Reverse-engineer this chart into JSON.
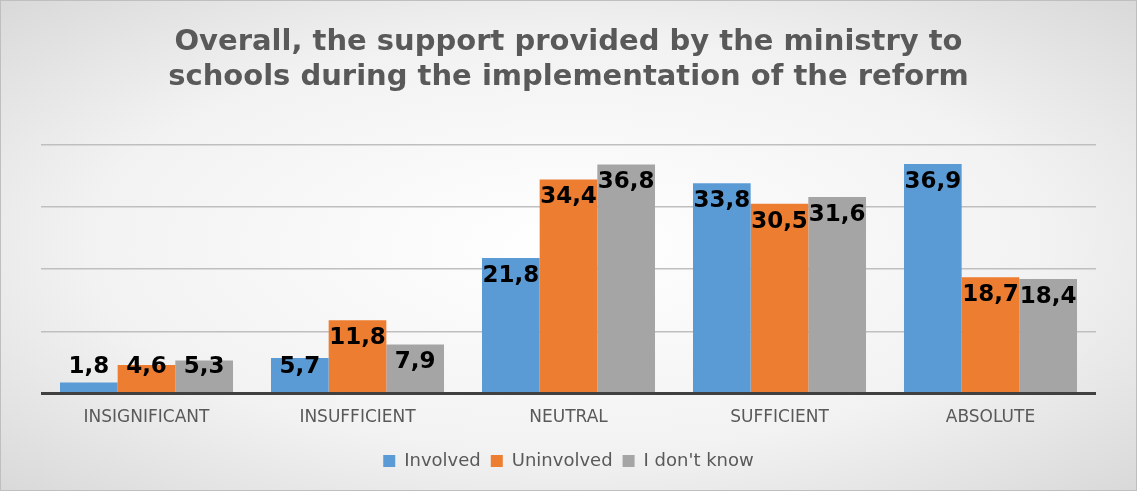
{
  "chart_data": {
    "type": "bar",
    "title": "Overall, the support provided by the ministry to schools during the implementation of the reform",
    "categories": [
      "INSIGNIFICANT",
      "INSUFFICIENT",
      "NEUTRAL",
      "SUFFICIENT",
      "ABSOLUTE"
    ],
    "series": [
      {
        "name": "Involved",
        "color": "#5b9bd5",
        "values": [
          1.8,
          5.7,
          21.8,
          33.8,
          36.9
        ],
        "value_labels": [
          "1,8",
          "5,7",
          "21,8",
          "33,8",
          "36,9"
        ]
      },
      {
        "name": "Uninvolved",
        "color": "#ed7d31",
        "values": [
          4.6,
          11.8,
          34.4,
          30.5,
          18.7
        ],
        "value_labels": [
          "4,6",
          "11,8",
          "34,4",
          "30,5",
          "18,7"
        ]
      },
      {
        "name": "I don't know",
        "color": "#a5a5a5",
        "values": [
          5.3,
          7.9,
          36.8,
          31.6,
          18.4
        ],
        "value_labels": [
          "5,3",
          "7,9",
          "36,8",
          "31,6",
          "18,4"
        ]
      }
    ],
    "ylim": [
      0,
      40
    ],
    "yticks": [
      {
        "value": 0,
        "label": null
      },
      {
        "value": 10,
        "label": null
      },
      {
        "value": 20,
        "label": null
      },
      {
        "value": 30,
        "label": null
      },
      {
        "value": 40,
        "label": null
      }
    ],
    "tick_labels": "x",
    "grid": "y",
    "legend": "bottom"
  }
}
